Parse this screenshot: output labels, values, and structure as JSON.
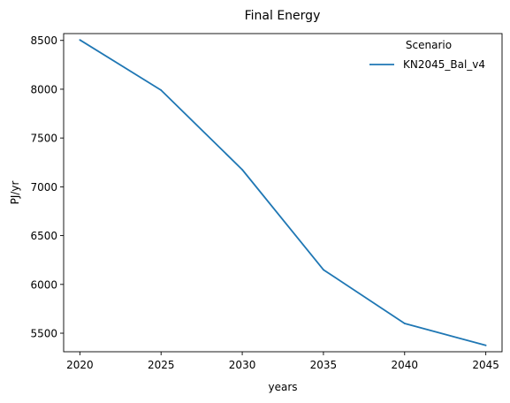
{
  "chart_data": {
    "type": "line",
    "title": "Final Energy",
    "xlabel": "years",
    "ylabel": "PJ/yr",
    "x": [
      2020,
      2025,
      2030,
      2035,
      2040,
      2045
    ],
    "series": [
      {
        "name": "KN2045_Bal_v4",
        "values": [
          8505,
          7990,
          7175,
          6150,
          5600,
          5375
        ],
        "color": "#1f77b4"
      }
    ],
    "xlim": [
      2019,
      2046
    ],
    "ylim": [
      5310,
      8570
    ],
    "xticks": [
      2020,
      2025,
      2030,
      2035,
      2040,
      2045
    ],
    "yticks": [
      5500,
      6000,
      6500,
      7000,
      7500,
      8000,
      8500
    ],
    "grid": false,
    "legend": {
      "title": "Scenario",
      "placement": "top-right"
    }
  }
}
